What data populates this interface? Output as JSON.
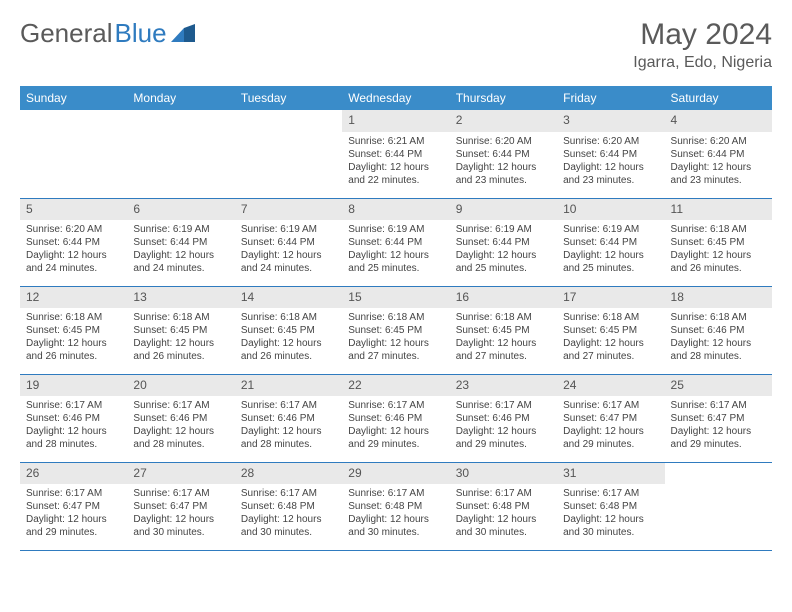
{
  "logo": {
    "part1": "General",
    "part2": "Blue"
  },
  "title": "May 2024",
  "location": "Igarra, Edo, Nigeria",
  "colors": {
    "header_bg": "#3a8cc9",
    "border": "#2f7bbf",
    "daynum_bg": "#e9e9e9",
    "text": "#444444",
    "title_text": "#5a5a5a"
  },
  "typography": {
    "title_fontsize": 30,
    "location_fontsize": 16,
    "dayheader_fontsize": 12,
    "daynum_fontsize": 12,
    "body_fontsize": 10
  },
  "day_headers": [
    "Sunday",
    "Monday",
    "Tuesday",
    "Wednesday",
    "Thursday",
    "Friday",
    "Saturday"
  ],
  "weeks": [
    [
      {
        "n": "",
        "sr": "",
        "ss": "",
        "dl": ""
      },
      {
        "n": "",
        "sr": "",
        "ss": "",
        "dl": ""
      },
      {
        "n": "",
        "sr": "",
        "ss": "",
        "dl": ""
      },
      {
        "n": "1",
        "sr": "Sunrise: 6:21 AM",
        "ss": "Sunset: 6:44 PM",
        "dl": "Daylight: 12 hours and 22 minutes."
      },
      {
        "n": "2",
        "sr": "Sunrise: 6:20 AM",
        "ss": "Sunset: 6:44 PM",
        "dl": "Daylight: 12 hours and 23 minutes."
      },
      {
        "n": "3",
        "sr": "Sunrise: 6:20 AM",
        "ss": "Sunset: 6:44 PM",
        "dl": "Daylight: 12 hours and 23 minutes."
      },
      {
        "n": "4",
        "sr": "Sunrise: 6:20 AM",
        "ss": "Sunset: 6:44 PM",
        "dl": "Daylight: 12 hours and 23 minutes."
      }
    ],
    [
      {
        "n": "5",
        "sr": "Sunrise: 6:20 AM",
        "ss": "Sunset: 6:44 PM",
        "dl": "Daylight: 12 hours and 24 minutes."
      },
      {
        "n": "6",
        "sr": "Sunrise: 6:19 AM",
        "ss": "Sunset: 6:44 PM",
        "dl": "Daylight: 12 hours and 24 minutes."
      },
      {
        "n": "7",
        "sr": "Sunrise: 6:19 AM",
        "ss": "Sunset: 6:44 PM",
        "dl": "Daylight: 12 hours and 24 minutes."
      },
      {
        "n": "8",
        "sr": "Sunrise: 6:19 AM",
        "ss": "Sunset: 6:44 PM",
        "dl": "Daylight: 12 hours and 25 minutes."
      },
      {
        "n": "9",
        "sr": "Sunrise: 6:19 AM",
        "ss": "Sunset: 6:44 PM",
        "dl": "Daylight: 12 hours and 25 minutes."
      },
      {
        "n": "10",
        "sr": "Sunrise: 6:19 AM",
        "ss": "Sunset: 6:44 PM",
        "dl": "Daylight: 12 hours and 25 minutes."
      },
      {
        "n": "11",
        "sr": "Sunrise: 6:18 AM",
        "ss": "Sunset: 6:45 PM",
        "dl": "Daylight: 12 hours and 26 minutes."
      }
    ],
    [
      {
        "n": "12",
        "sr": "Sunrise: 6:18 AM",
        "ss": "Sunset: 6:45 PM",
        "dl": "Daylight: 12 hours and 26 minutes."
      },
      {
        "n": "13",
        "sr": "Sunrise: 6:18 AM",
        "ss": "Sunset: 6:45 PM",
        "dl": "Daylight: 12 hours and 26 minutes."
      },
      {
        "n": "14",
        "sr": "Sunrise: 6:18 AM",
        "ss": "Sunset: 6:45 PM",
        "dl": "Daylight: 12 hours and 26 minutes."
      },
      {
        "n": "15",
        "sr": "Sunrise: 6:18 AM",
        "ss": "Sunset: 6:45 PM",
        "dl": "Daylight: 12 hours and 27 minutes."
      },
      {
        "n": "16",
        "sr": "Sunrise: 6:18 AM",
        "ss": "Sunset: 6:45 PM",
        "dl": "Daylight: 12 hours and 27 minutes."
      },
      {
        "n": "17",
        "sr": "Sunrise: 6:18 AM",
        "ss": "Sunset: 6:45 PM",
        "dl": "Daylight: 12 hours and 27 minutes."
      },
      {
        "n": "18",
        "sr": "Sunrise: 6:18 AM",
        "ss": "Sunset: 6:46 PM",
        "dl": "Daylight: 12 hours and 28 minutes."
      }
    ],
    [
      {
        "n": "19",
        "sr": "Sunrise: 6:17 AM",
        "ss": "Sunset: 6:46 PM",
        "dl": "Daylight: 12 hours and 28 minutes."
      },
      {
        "n": "20",
        "sr": "Sunrise: 6:17 AM",
        "ss": "Sunset: 6:46 PM",
        "dl": "Daylight: 12 hours and 28 minutes."
      },
      {
        "n": "21",
        "sr": "Sunrise: 6:17 AM",
        "ss": "Sunset: 6:46 PM",
        "dl": "Daylight: 12 hours and 28 minutes."
      },
      {
        "n": "22",
        "sr": "Sunrise: 6:17 AM",
        "ss": "Sunset: 6:46 PM",
        "dl": "Daylight: 12 hours and 29 minutes."
      },
      {
        "n": "23",
        "sr": "Sunrise: 6:17 AM",
        "ss": "Sunset: 6:46 PM",
        "dl": "Daylight: 12 hours and 29 minutes."
      },
      {
        "n": "24",
        "sr": "Sunrise: 6:17 AM",
        "ss": "Sunset: 6:47 PM",
        "dl": "Daylight: 12 hours and 29 minutes."
      },
      {
        "n": "25",
        "sr": "Sunrise: 6:17 AM",
        "ss": "Sunset: 6:47 PM",
        "dl": "Daylight: 12 hours and 29 minutes."
      }
    ],
    [
      {
        "n": "26",
        "sr": "Sunrise: 6:17 AM",
        "ss": "Sunset: 6:47 PM",
        "dl": "Daylight: 12 hours and 29 minutes."
      },
      {
        "n": "27",
        "sr": "Sunrise: 6:17 AM",
        "ss": "Sunset: 6:47 PM",
        "dl": "Daylight: 12 hours and 30 minutes."
      },
      {
        "n": "28",
        "sr": "Sunrise: 6:17 AM",
        "ss": "Sunset: 6:48 PM",
        "dl": "Daylight: 12 hours and 30 minutes."
      },
      {
        "n": "29",
        "sr": "Sunrise: 6:17 AM",
        "ss": "Sunset: 6:48 PM",
        "dl": "Daylight: 12 hours and 30 minutes."
      },
      {
        "n": "30",
        "sr": "Sunrise: 6:17 AM",
        "ss": "Sunset: 6:48 PM",
        "dl": "Daylight: 12 hours and 30 minutes."
      },
      {
        "n": "31",
        "sr": "Sunrise: 6:17 AM",
        "ss": "Sunset: 6:48 PM",
        "dl": "Daylight: 12 hours and 30 minutes."
      },
      {
        "n": "",
        "sr": "",
        "ss": "",
        "dl": ""
      }
    ]
  ]
}
